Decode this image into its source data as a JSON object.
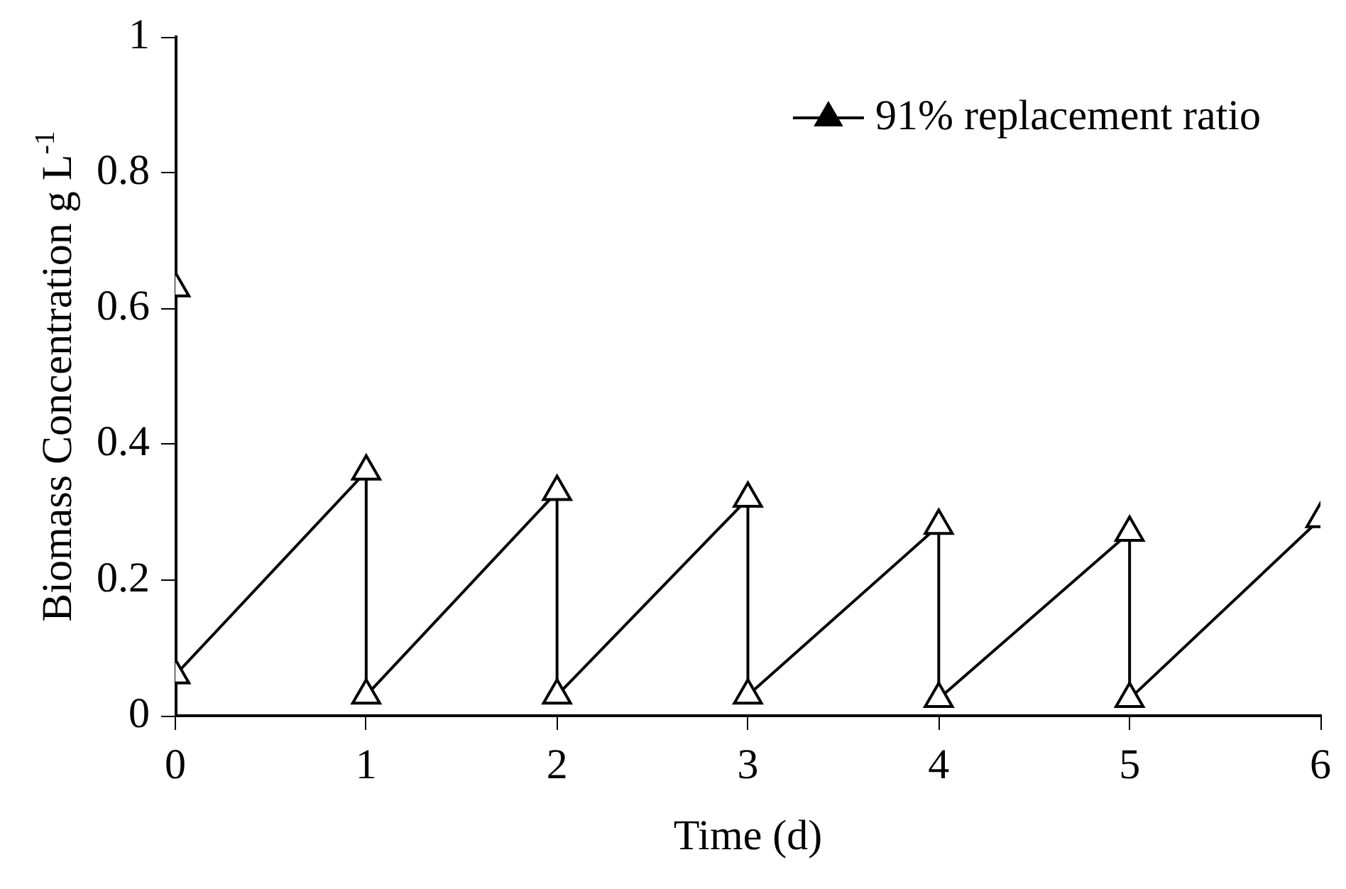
{
  "chart_data": {
    "type": "line",
    "xlabel": "Time (d)",
    "ylabel": "Biomass Concentration g L$^{-1}$",
    "xlim": [
      0,
      6
    ],
    "xticks": [
      0,
      1,
      2,
      3,
      4,
      5,
      6
    ],
    "ylim": [
      0,
      1
    ],
    "yticks": [
      0,
      0.2,
      0.4,
      0.6,
      0.8,
      1
    ],
    "grid": false,
    "legend": "top right",
    "marker": "triangle",
    "line_style": "solid",
    "series": [
      {
        "type": "scatter",
        "color": "#000000",
        "x": [
          0
        ],
        "values": [
          0.63
        ]
      },
      {
        "name": "91% replacement ratio",
        "color": "#000000",
        "x": [
          0,
          1,
          1,
          2,
          2,
          3,
          3,
          4,
          4,
          5,
          5,
          6
        ],
        "values": [
          0.06,
          0.36,
          0.03,
          0.33,
          0.03,
          0.32,
          0.03,
          0.28,
          0.025,
          0.27,
          0.025,
          0.29
        ]
      }
    ]
  }
}
